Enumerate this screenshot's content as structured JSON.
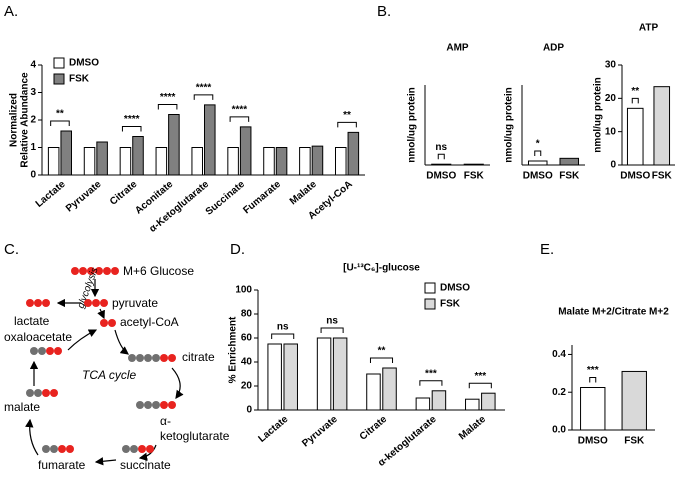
{
  "panel_labels": [
    "A.",
    "B.",
    "C.",
    "D.",
    "E."
  ],
  "chart_data": [
    {
      "type": "bar",
      "ylabel": [
        "Normalized",
        "Relative Abundance"
      ],
      "categories": [
        "Lactate",
        "Pyruvate",
        "Citrate",
        "Aconitate",
        "α-Ketoglutarate",
        "Succinate",
        "Fumarate",
        "Malate",
        "Acetyl-CoA"
      ],
      "series": [
        {
          "name": "DMSO",
          "color": "#ffffff",
          "values": [
            1.0,
            1.0,
            1.0,
            1.0,
            1.0,
            1.0,
            1.0,
            1.0,
            1.0
          ]
        },
        {
          "name": "FSK",
          "color": "#808080",
          "values": [
            1.6,
            1.2,
            1.4,
            2.2,
            2.55,
            1.75,
            1.0,
            1.05,
            1.55
          ]
        }
      ],
      "significance": [
        "**",
        null,
        "****",
        "****",
        "****",
        "****",
        null,
        null,
        "**"
      ],
      "ylim": [
        0,
        4
      ],
      "yticks": [
        0,
        1,
        2,
        3,
        4
      ],
      "legend": "upper left"
    },
    {
      "type": "bar",
      "title": "AMP",
      "ylabel": "nmol/ug protein",
      "categories": [
        "DMSO",
        "FSK"
      ],
      "series": [
        {
          "name": "DMSO",
          "color": "#ffffff",
          "values": [
            0.3,
            null
          ]
        },
        {
          "name": "FSK",
          "color": "#808080",
          "values": [
            null,
            0.3
          ]
        }
      ],
      "significance": [
        "ns"
      ],
      "ylim": [
        0,
        30
      ]
    },
    {
      "type": "bar",
      "title": "ADP",
      "ylabel": "nmol/ug protein",
      "categories": [
        "DMSO",
        "FSK"
      ],
      "series": [
        {
          "name": "DMSO",
          "color": "#ffffff",
          "values": [
            1.5,
            null
          ]
        },
        {
          "name": "FSK",
          "color": "#808080",
          "values": [
            null,
            2.5
          ]
        }
      ],
      "significance": [
        "*"
      ],
      "ylim": [
        0,
        30
      ]
    },
    {
      "type": "bar",
      "title": "ATP",
      "ylabel": "nmol/ug protein",
      "categories": [
        "DMSO",
        "FSK"
      ],
      "series": [
        {
          "name": "DMSO",
          "color": "#ffffff",
          "values": [
            17,
            null
          ]
        },
        {
          "name": "FSK",
          "color": "#d9d9d9",
          "values": [
            null,
            23.5
          ]
        }
      ],
      "significance": [
        "**"
      ],
      "ylim": [
        0,
        30
      ],
      "yticks": [
        0,
        10,
        20,
        30
      ]
    },
    {
      "type": "bar",
      "title": "[U-¹³C₆]-glucose",
      "ylabel": "% Enrichment",
      "categories": [
        "Lactate",
        "Pyruvate",
        "Citrate",
        "α-ketoglutarate",
        "Malate"
      ],
      "series": [
        {
          "name": "DMSO",
          "color": "#ffffff",
          "values": [
            55,
            60,
            30,
            10,
            9
          ]
        },
        {
          "name": "FSK",
          "color": "#d9d9d9",
          "values": [
            55,
            60,
            35,
            16,
            14
          ]
        }
      ],
      "significance": [
        "ns",
        "ns",
        "**",
        "***",
        "***"
      ],
      "ylim": [
        0,
        100
      ],
      "yticks": [
        0,
        20,
        40,
        60,
        80,
        100
      ],
      "legend": "upper right"
    },
    {
      "type": "bar",
      "title": "Malate M+2/Citrate M+2",
      "categories": [
        "DMSO",
        "FSK"
      ],
      "series": [
        {
          "name": "DMSO",
          "color": "#ffffff",
          "values": [
            0.225,
            null
          ]
        },
        {
          "name": "FSK",
          "color": "#d9d9d9",
          "values": [
            null,
            0.31
          ]
        }
      ],
      "significance": [
        "***"
      ],
      "ylim": [
        0,
        0.45
      ],
      "yticks": [
        {
          "value": 0,
          "label": "0.0"
        },
        0.2,
        0.4
      ]
    }
  ],
  "diagram": {
    "labels": [
      "M+6 Glucose",
      "glycolysis",
      "pyruvate",
      "lactate",
      "acetyl-CoA",
      "citrate",
      "oxaloacetate",
      "TCA cycle",
      "malate",
      [
        "α-",
        "ketoglutarate"
      ],
      "fumarate",
      "succinate"
    ]
  }
}
